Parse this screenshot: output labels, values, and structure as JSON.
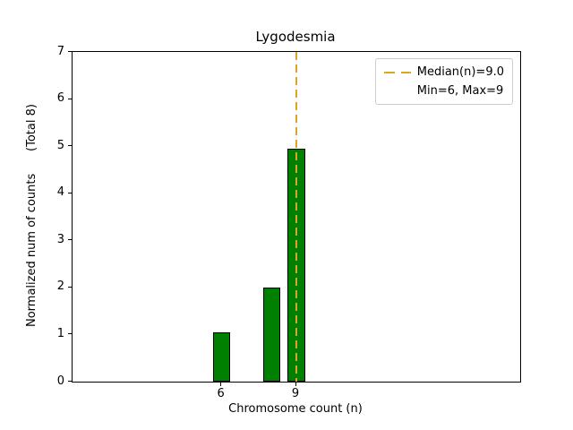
{
  "chart_data": {
    "type": "bar",
    "title": "Lygodesmia",
    "xlabel": "Chromosome count (n)",
    "ylabel": "Normalized num of counts      (Total 8)",
    "xlim": [
      0,
      18
    ],
    "ylim": [
      0,
      7
    ],
    "xticks": [
      6,
      9
    ],
    "yticks": [
      0,
      1,
      2,
      3,
      4,
      5,
      6,
      7
    ],
    "grid": false,
    "bar_color": "#008000",
    "bar_edge_color": "#000000",
    "bar_width_units": 0.7,
    "bars": [
      {
        "x": 6,
        "height": 1.05
      },
      {
        "x": 8,
        "height": 2.0
      },
      {
        "x": 9,
        "height": 4.95
      }
    ],
    "median_line": {
      "x": 9,
      "color": "#daa520",
      "style": "dashed"
    },
    "legend": {
      "position": "upper right",
      "entries": [
        "Median(n)=9.0",
        "Min=6, Max=9"
      ]
    }
  }
}
